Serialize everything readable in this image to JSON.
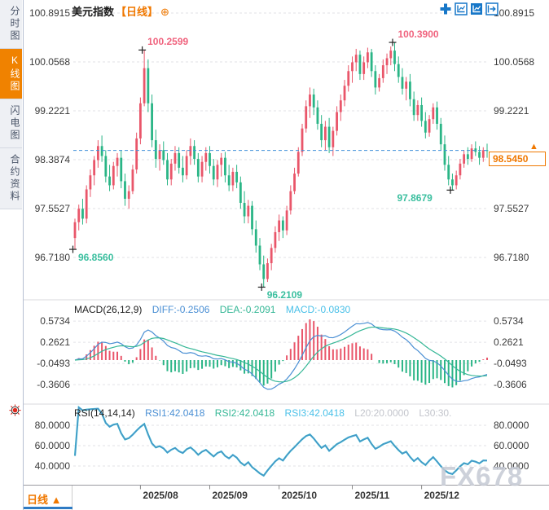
{
  "sidebar": {
    "items": [
      {
        "label": "分时图",
        "active": false
      },
      {
        "label": "K线图",
        "active": true
      },
      {
        "label": "闪电图",
        "active": false
      },
      {
        "label": "合约资料",
        "active": false
      }
    ]
  },
  "header": {
    "title": "美元指数",
    "period_tag": "【日线】",
    "expand_glyph": "⊕"
  },
  "toolbar": {
    "icons": [
      "crosshair-pan-icon",
      "axis-scale-icon",
      "axis-scale-active-icon",
      "exit-chart-icon"
    ]
  },
  "price_marker": {
    "value": "98.5450",
    "arrow_glyph": "▲"
  },
  "macd_header": {
    "name": "MACD(26,12,9)",
    "diff": "DIFF:-0.2506",
    "dea": "DEA:-0.2091",
    "macd": "MACD:-0.0830"
  },
  "rsi_header": {
    "name": "RSI(14,14,14)",
    "rsi1": "RSI1:42.0418",
    "rsi2": "RSI2:42.0418",
    "rsi3": "RSI3:42.0418",
    "l20": "L20:20.0000",
    "l30": "L30:30."
  },
  "bottom_bar": {
    "tab_label": "日线",
    "tab_arrow": "▲"
  },
  "watermark": "FX678",
  "chart_data": {
    "type": "candlestick",
    "title": "美元指数 日线 (US Dollar Index, Daily)",
    "panes": [
      "price",
      "MACD(26,12,9)",
      "RSI(14,14,14)"
    ],
    "y_ticks_price": [
      "100.8915",
      "100.0568",
      "99.2221",
      "98.3874",
      "97.5527",
      "96.7180"
    ],
    "y_ticks_macd": [
      "0.5734",
      "0.2621",
      "-0.0493",
      "-0.3606"
    ],
    "y_ticks_rsi": [
      "80.0000",
      "60.0000",
      "40.0000"
    ],
    "x_ticks": [
      {
        "label": "2025/08",
        "index": 17
      },
      {
        "label": "2025/09",
        "index": 35
      },
      {
        "label": "2025/10",
        "index": 53
      },
      {
        "label": "2025/11",
        "index": 72
      },
      {
        "label": "2025/12",
        "index": 90
      }
    ],
    "current_price": 98.545,
    "indicator_values": {
      "diff": -0.2506,
      "dea": -0.2091,
      "macd": -0.083,
      "rsi1": 42.0418,
      "rsi2": 42.0418,
      "rsi3": 42.0418,
      "l20": 20.0,
      "l30": 30.0
    },
    "annotations": [
      {
        "index": 0,
        "price": 96.856,
        "side": "low",
        "label": "96.8560",
        "align": "right"
      },
      {
        "index": 18,
        "price": 100.2599,
        "side": "high",
        "label": "100.2599",
        "align": "right"
      },
      {
        "index": 49,
        "price": 96.2109,
        "side": "low",
        "label": "96.2109",
        "align": "right"
      },
      {
        "index": 83,
        "price": 100.39,
        "side": "high",
        "label": "100.3900",
        "align": "right"
      },
      {
        "index": 98,
        "price": 97.8679,
        "side": "low",
        "label": "97.8679",
        "align": "left"
      }
    ],
    "colors": {
      "up": "#e9566a",
      "down": "#2ab586",
      "accent_orange": "#f07800",
      "icon_blue": "#1777c8",
      "diff_line": "#4a8fd4",
      "dea_line": "#35b796",
      "rsi_line": "#4a8fd4",
      "rsi_line2": "#49c0e8",
      "annotation_high": "#f0637e",
      "annotation_low": "#3bbf9f",
      "price_line": "#3f8fd9",
      "grid": "#e2e2e6",
      "separator": "#d9d9dd",
      "frame": "#9a9aa0"
    },
    "candles": [
      [
        97.05,
        97.38,
        96.856,
        97.32
      ],
      [
        97.32,
        97.62,
        97.18,
        97.55
      ],
      [
        97.55,
        97.72,
        97.28,
        97.38
      ],
      [
        97.38,
        97.95,
        97.3,
        97.88
      ],
      [
        97.88,
        98.22,
        97.75,
        98.12
      ],
      [
        98.12,
        98.45,
        97.95,
        98.38
      ],
      [
        98.38,
        98.72,
        98.25,
        98.62
      ],
      [
        98.62,
        98.8,
        98.35,
        98.45
      ],
      [
        98.45,
        98.55,
        98.0,
        98.1
      ],
      [
        98.1,
        98.3,
        97.85,
        97.95
      ],
      [
        97.95,
        98.35,
        97.88,
        98.28
      ],
      [
        98.28,
        98.5,
        98.1,
        98.42
      ],
      [
        98.42,
        98.55,
        97.9,
        98.02
      ],
      [
        98.02,
        98.15,
        97.6,
        97.72
      ],
      [
        97.72,
        97.95,
        97.55,
        97.85
      ],
      [
        97.85,
        98.3,
        97.8,
        98.22
      ],
      [
        98.22,
        98.85,
        98.15,
        98.75
      ],
      [
        98.75,
        99.45,
        98.65,
        99.35
      ],
      [
        99.35,
        100.2599,
        99.3,
        99.95
      ],
      [
        99.95,
        100.1,
        99.2,
        99.35
      ],
      [
        99.35,
        99.5,
        98.6,
        98.72
      ],
      [
        98.72,
        98.9,
        98.25,
        98.4
      ],
      [
        98.4,
        98.65,
        98.2,
        98.55
      ],
      [
        98.55,
        98.7,
        98.3,
        98.38
      ],
      [
        98.38,
        98.5,
        97.95,
        98.05
      ],
      [
        98.05,
        98.4,
        97.95,
        98.32
      ],
      [
        98.32,
        98.62,
        98.2,
        98.5
      ],
      [
        98.5,
        98.6,
        98.15,
        98.25
      ],
      [
        98.25,
        98.45,
        98.0,
        98.12
      ],
      [
        98.12,
        98.55,
        98.05,
        98.45
      ],
      [
        98.45,
        98.75,
        98.3,
        98.62
      ],
      [
        98.62,
        98.72,
        98.3,
        98.4
      ],
      [
        98.4,
        98.5,
        98.0,
        98.1
      ],
      [
        98.1,
        98.45,
        98.0,
        98.35
      ],
      [
        98.35,
        98.6,
        98.2,
        98.5
      ],
      [
        98.5,
        98.62,
        98.15,
        98.28
      ],
      [
        98.28,
        98.4,
        97.95,
        98.05
      ],
      [
        98.05,
        98.38,
        97.92,
        98.3
      ],
      [
        98.3,
        98.5,
        98.1,
        98.42
      ],
      [
        98.42,
        98.52,
        98.0,
        98.12
      ],
      [
        98.12,
        98.3,
        97.85,
        97.95
      ],
      [
        97.95,
        98.25,
        97.85,
        98.18
      ],
      [
        98.18,
        98.3,
        97.9,
        98.0
      ],
      [
        98.0,
        98.1,
        97.55,
        97.65
      ],
      [
        97.65,
        97.85,
        97.3,
        97.42
      ],
      [
        97.42,
        97.7,
        97.3,
        97.6
      ],
      [
        97.6,
        97.68,
        97.1,
        97.2
      ],
      [
        97.2,
        97.35,
        96.8,
        96.92
      ],
      [
        96.92,
        97.05,
        96.5,
        96.6
      ],
      [
        96.6,
        96.75,
        96.2109,
        96.35
      ],
      [
        96.35,
        96.7,
        96.3,
        96.62
      ],
      [
        96.62,
        96.95,
        96.5,
        96.88
      ],
      [
        96.88,
        97.25,
        96.8,
        97.15
      ],
      [
        97.15,
        97.45,
        97.0,
        97.35
      ],
      [
        97.35,
        97.42,
        97.05,
        97.18
      ],
      [
        97.18,
        97.6,
        97.1,
        97.52
      ],
      [
        97.52,
        97.95,
        97.45,
        97.85
      ],
      [
        97.85,
        98.25,
        97.8,
        98.15
      ],
      [
        98.15,
        98.6,
        98.1,
        98.52
      ],
      [
        98.52,
        99.0,
        98.45,
        98.92
      ],
      [
        98.92,
        99.4,
        98.85,
        99.3
      ],
      [
        99.3,
        99.62,
        99.1,
        99.5
      ],
      [
        99.5,
        99.6,
        99.15,
        99.28
      ],
      [
        99.28,
        99.4,
        98.9,
        99.0
      ],
      [
        99.0,
        99.15,
        98.6,
        98.72
      ],
      [
        98.72,
        99.05,
        98.55,
        98.95
      ],
      [
        98.95,
        99.1,
        98.5,
        98.6
      ],
      [
        98.6,
        98.95,
        98.45,
        98.88
      ],
      [
        98.88,
        99.3,
        98.8,
        99.2
      ],
      [
        99.2,
        99.5,
        99.05,
        99.4
      ],
      [
        99.4,
        99.75,
        99.3,
        99.65
      ],
      [
        99.65,
        100.0,
        99.55,
        99.9
      ],
      [
        99.9,
        100.15,
        99.7,
        100.05
      ],
      [
        100.05,
        100.28,
        99.9,
        100.18
      ],
      [
        100.18,
        100.25,
        99.75,
        99.85
      ],
      [
        99.85,
        100.15,
        99.75,
        100.05
      ],
      [
        100.05,
        100.3,
        99.95,
        100.22
      ],
      [
        100.22,
        100.28,
        99.8,
        99.9
      ],
      [
        99.9,
        100.0,
        99.5,
        99.62
      ],
      [
        99.62,
        99.85,
        99.55,
        99.78
      ],
      [
        99.78,
        100.1,
        99.7,
        100.0
      ],
      [
        100.0,
        100.2,
        99.85,
        100.12
      ],
      [
        100.12,
        100.32,
        100.0,
        100.25
      ],
      [
        100.25,
        100.39,
        99.9,
        100.02
      ],
      [
        100.02,
        100.15,
        99.7,
        99.8
      ],
      [
        99.8,
        99.95,
        99.5,
        99.6
      ],
      [
        99.6,
        99.8,
        99.4,
        99.72
      ],
      [
        99.72,
        99.85,
        99.3,
        99.42
      ],
      [
        99.42,
        99.55,
        99.05,
        99.15
      ],
      [
        99.15,
        99.4,
        99.05,
        99.32
      ],
      [
        99.32,
        99.45,
        98.95,
        99.05
      ],
      [
        99.05,
        99.2,
        98.75,
        98.85
      ],
      [
        98.85,
        99.15,
        98.78,
        99.08
      ],
      [
        99.08,
        99.35,
        99.0,
        99.28
      ],
      [
        99.28,
        99.38,
        98.9,
        99.0
      ],
      [
        99.0,
        99.1,
        98.55,
        98.65
      ],
      [
        98.65,
        98.8,
        98.2,
        98.3
      ],
      [
        98.3,
        98.45,
        97.95,
        98.05
      ],
      [
        98.05,
        98.15,
        97.8679,
        97.95
      ],
      [
        97.95,
        98.2,
        97.88,
        98.12
      ],
      [
        98.12,
        98.4,
        98.05,
        98.32
      ],
      [
        98.32,
        98.55,
        98.25,
        98.48
      ],
      [
        98.48,
        98.6,
        98.3,
        98.4
      ],
      [
        98.4,
        98.65,
        98.35,
        98.58
      ],
      [
        98.58,
        98.7,
        98.45,
        98.52
      ],
      [
        98.52,
        98.62,
        98.3,
        98.42
      ],
      [
        98.42,
        98.6,
        98.35,
        98.55
      ],
      [
        98.55,
        98.66,
        98.42,
        98.545
      ]
    ]
  }
}
